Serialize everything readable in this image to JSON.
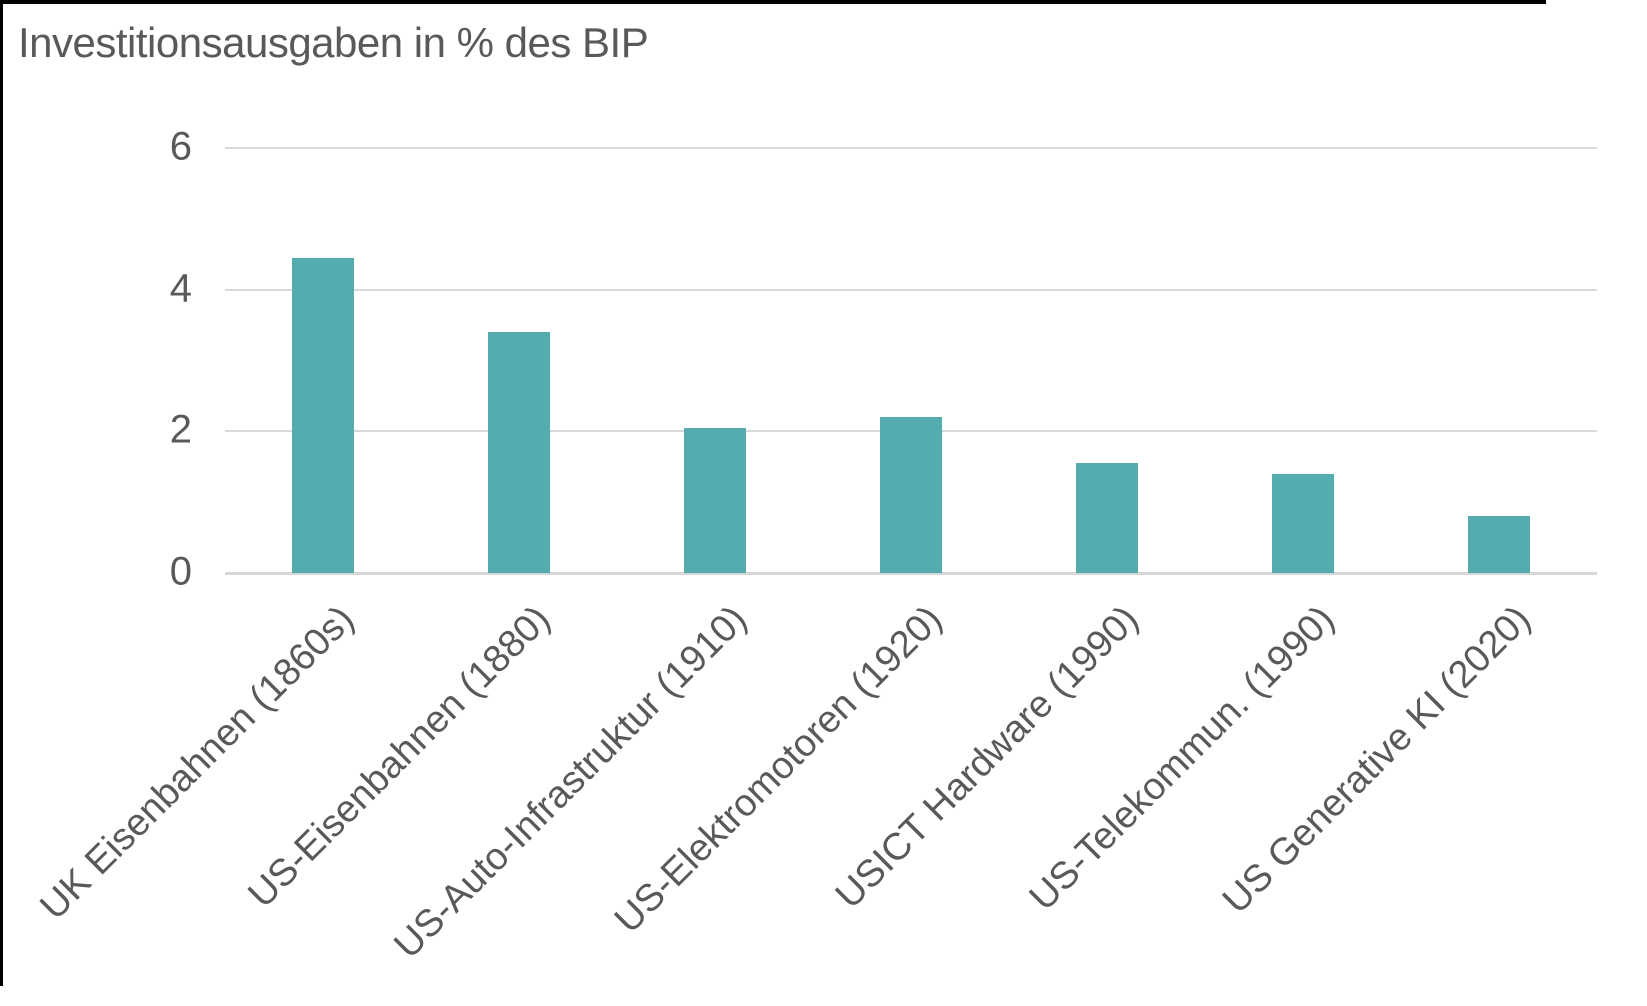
{
  "frame": {
    "top_edge_color": "#000000",
    "left_edge_color": "#000000"
  },
  "chart_data": {
    "type": "bar",
    "title": "Investitionsausgaben in % des BIP",
    "categories": [
      "UK Eisenbahnen (1860s)",
      "US-Eisenbahnen (1880)",
      "US-Auto-Infrastruktur (1910)",
      "US-Elektromotoren (1920)",
      "USICT Hardware (1990)",
      "US-Telekommun. (1990)",
      "US Generative KI (2020)"
    ],
    "values": [
      4.45,
      3.4,
      2.05,
      2.2,
      1.55,
      1.4,
      0.8
    ],
    "xlabel": "",
    "ylabel": "",
    "ylim": [
      0,
      6
    ],
    "yticks": [
      0,
      2,
      4,
      6
    ],
    "grid": "horizontal",
    "legend": "none",
    "category_label_rotation_deg": -45,
    "colors": {
      "bar": "#55ACAE",
      "gridline": "#D9D9D9",
      "axis_line": "#D6D6D6",
      "text": "#595959",
      "title_text": "#595959"
    }
  }
}
